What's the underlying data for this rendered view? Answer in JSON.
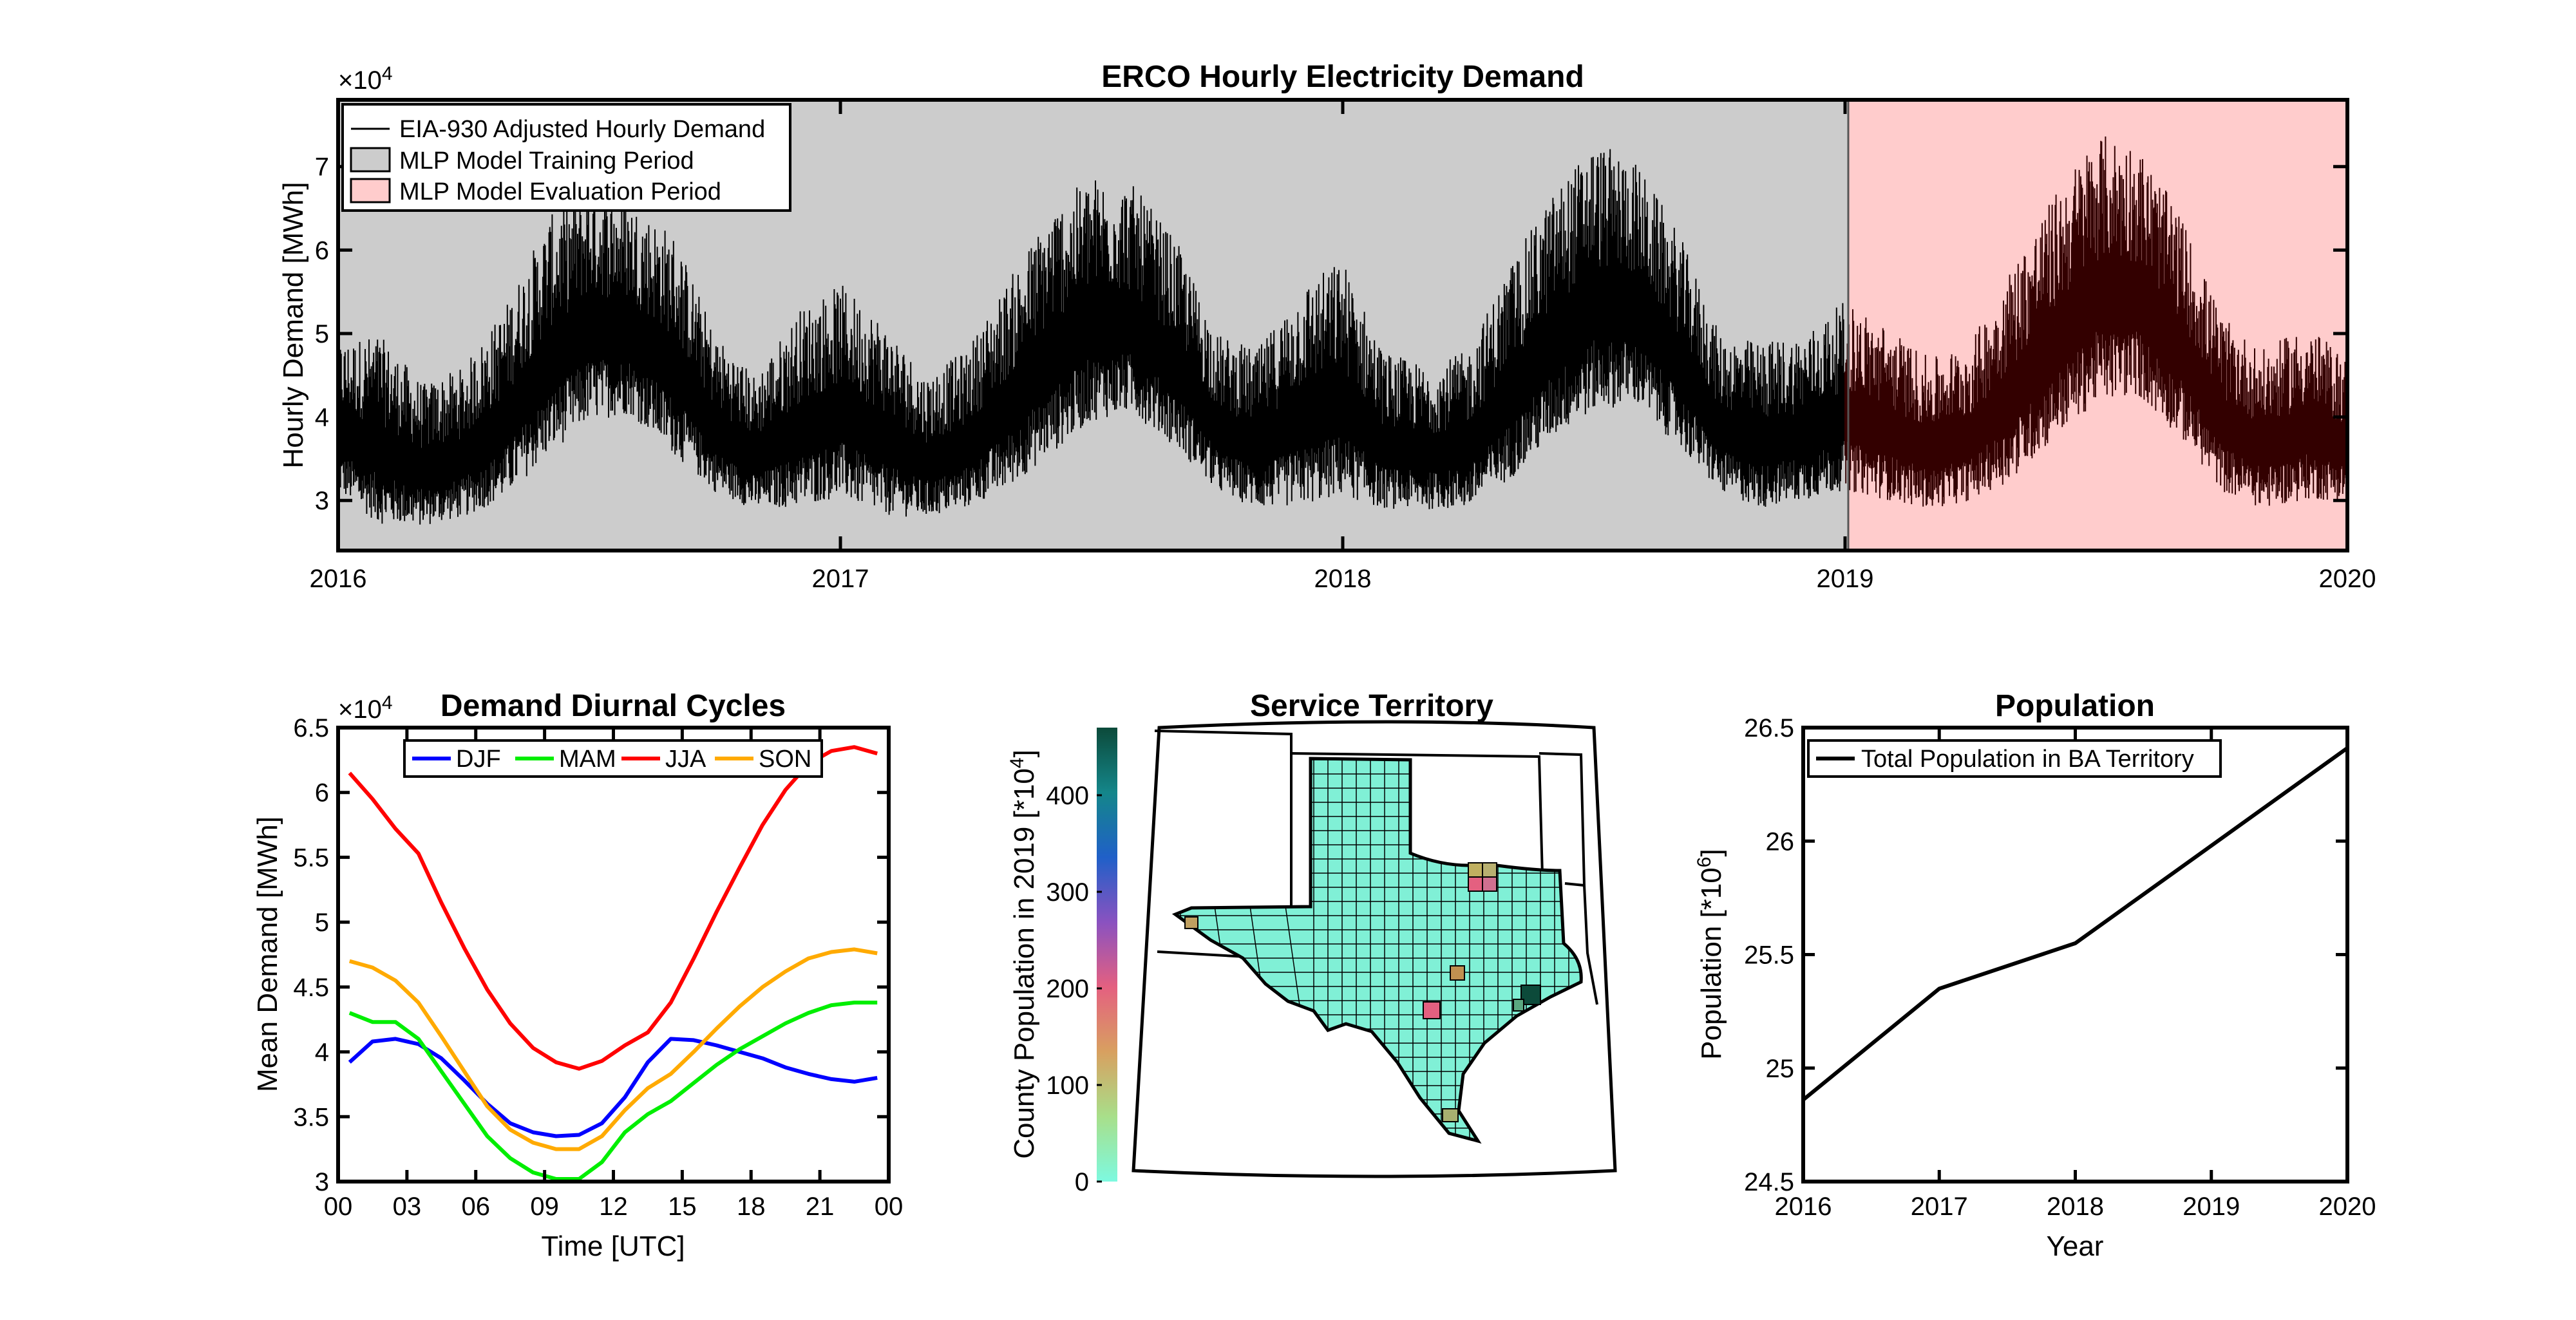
{
  "colors": {
    "training_shade": "#cccccc",
    "evaluation_shade": "#ffcccc",
    "demand_line": "#000000",
    "evaluation_line": "#330000",
    "DJF": "#0000ff",
    "MAM": "#00ee00",
    "JJA": "#ff0000",
    "SON": "#ffaa00",
    "population_line": "#000000",
    "county_fill": "#80f0d6"
  },
  "chart_data": [
    {
      "type": "line",
      "title": "ERCO Hourly Electricity Demand",
      "ylabel": "Hourly Demand [MWh]",
      "y_exponent": "×10",
      "y_exponent_power": "4",
      "x_tick_labels": [
        "2016",
        "2017",
        "2018",
        "2019",
        "2020"
      ],
      "xlim": [
        2016,
        2020
      ],
      "ylim": [
        2.4,
        7.8
      ],
      "y_ticks": [
        3,
        4,
        5,
        6,
        7
      ],
      "legend_position": "top-left",
      "legend": [
        "EIA-930 Adjusted Hourly Demand",
        "MLP Model Training Period",
        "MLP Model Evaluation Period"
      ],
      "training_period": [
        2016,
        2019
      ],
      "evaluation_period": [
        2019,
        2020
      ],
      "series": [
        {
          "name": "EIA-930 Adjusted Hourly Demand",
          "x": [
            2016.0,
            2016.08,
            2016.17,
            2016.25,
            2016.33,
            2016.42,
            2016.5,
            2016.58,
            2016.67,
            2016.75,
            2016.83,
            2016.92,
            2017.0,
            2017.08,
            2017.17,
            2017.25,
            2017.33,
            2017.42,
            2017.5,
            2017.58,
            2017.67,
            2017.75,
            2017.83,
            2017.92,
            2018.0,
            2018.08,
            2018.17,
            2018.25,
            2018.33,
            2018.42,
            2018.5,
            2018.58,
            2018.67,
            2018.75,
            2018.83,
            2018.92,
            2019.0,
            2019.08,
            2019.17,
            2019.25,
            2019.33,
            2019.42,
            2019.5,
            2019.58,
            2019.67,
            2019.75,
            2019.83,
            2019.92,
            2020.0
          ],
          "low": [
            3.0,
            2.6,
            2.6,
            2.7,
            2.9,
            3.4,
            3.8,
            3.9,
            3.4,
            3.0,
            2.8,
            2.8,
            2.9,
            2.7,
            2.7,
            2.8,
            3.0,
            3.4,
            3.8,
            3.9,
            3.5,
            3.0,
            2.8,
            2.8,
            2.9,
            2.8,
            2.8,
            2.8,
            3.1,
            3.6,
            3.9,
            4.0,
            3.5,
            3.0,
            2.8,
            2.9,
            3.0,
            2.9,
            2.8,
            2.9,
            3.1,
            3.6,
            4.0,
            4.1,
            3.6,
            3.0,
            2.8,
            2.9,
            2.9
          ],
          "high": [
            4.9,
            5.0,
            4.4,
            4.6,
            5.3,
            6.4,
            6.8,
            6.6,
            6.2,
            5.0,
            4.5,
            5.3,
            5.6,
            5.2,
            4.5,
            4.8,
            5.6,
            6.5,
            6.9,
            6.8,
            6.1,
            5.0,
            4.8,
            5.6,
            5.9,
            4.8,
            4.6,
            4.8,
            5.8,
            6.7,
            7.3,
            7.1,
            6.2,
            5.0,
            4.9,
            5.0,
            5.4,
            5.1,
            4.7,
            4.9,
            5.8,
            6.7,
            7.4,
            7.3,
            6.4,
            5.2,
            4.8,
            5.1,
            4.7
          ]
        }
      ]
    },
    {
      "type": "line",
      "title": "Demand Diurnal Cycles",
      "xlabel": "Time [UTC]",
      "ylabel": "Mean Demand [MWh]",
      "y_exponent": "×10",
      "y_exponent_power": "4",
      "x_tick_labels": [
        "00",
        "03",
        "06",
        "09",
        "12",
        "15",
        "18",
        "21",
        "00"
      ],
      "xlim": [
        0,
        24
      ],
      "ylim": [
        3.0,
        6.5
      ],
      "y_ticks": [
        3,
        3.5,
        4,
        4.5,
        5,
        5.5,
        6,
        6.5
      ],
      "y_tick_labels": [
        "3",
        "3.5",
        "4",
        "4.5",
        "5",
        "5.5",
        "6",
        "6.5"
      ],
      "legend_position": "top",
      "x": [
        0.5,
        1.5,
        2.5,
        3.5,
        4.5,
        5.5,
        6.5,
        7.5,
        8.5,
        9.5,
        10.5,
        11.5,
        12.5,
        13.5,
        14.5,
        15.5,
        16.5,
        17.5,
        18.5,
        19.5,
        20.5,
        21.5,
        22.5,
        23.5
      ],
      "series": [
        {
          "name": "DJF",
          "values": [
            3.92,
            4.08,
            4.1,
            4.06,
            3.95,
            3.78,
            3.6,
            3.45,
            3.38,
            3.35,
            3.36,
            3.45,
            3.65,
            3.92,
            4.1,
            4.09,
            4.05,
            4.0,
            3.95,
            3.88,
            3.83,
            3.79,
            3.77,
            3.8
          ]
        },
        {
          "name": "MAM",
          "values": [
            4.3,
            4.23,
            4.23,
            4.1,
            3.85,
            3.6,
            3.35,
            3.18,
            3.07,
            3.02,
            3.02,
            3.15,
            3.38,
            3.52,
            3.62,
            3.76,
            3.9,
            4.02,
            4.12,
            4.22,
            4.3,
            4.36,
            4.38,
            4.38
          ]
        },
        {
          "name": "JJA",
          "values": [
            6.15,
            5.95,
            5.72,
            5.53,
            5.15,
            4.8,
            4.48,
            4.22,
            4.03,
            3.92,
            3.87,
            3.93,
            4.05,
            4.15,
            4.38,
            4.72,
            5.08,
            5.42,
            5.75,
            6.02,
            6.22,
            6.32,
            6.35,
            6.3
          ]
        },
        {
          "name": "SON",
          "values": [
            4.7,
            4.65,
            4.55,
            4.38,
            4.12,
            3.85,
            3.58,
            3.4,
            3.3,
            3.25,
            3.25,
            3.35,
            3.55,
            3.72,
            3.83,
            4.0,
            4.18,
            4.35,
            4.5,
            4.62,
            4.72,
            4.77,
            4.79,
            4.76
          ]
        }
      ]
    },
    {
      "type": "heatmap",
      "title": "Service Territory",
      "colorbar_label": "County Population in 2019 [*10",
      "colorbar_label_power": "4",
      "colorbar_label_suffix": "]",
      "colorbar_range": [
        0,
        470
      ],
      "colorbar_ticks": [
        0,
        100,
        200,
        300,
        400
      ],
      "colorbar_colors": [
        "#7df9e0",
        "#a8df8a",
        "#d8a060",
        "#e46080",
        "#8a52c0",
        "#2060c8",
        "#14868a",
        "#0c4a3a"
      ]
    },
    {
      "type": "line",
      "title": "Population",
      "xlabel": "Year",
      "ylabel": "Population [*10",
      "ylabel_power": "6",
      "ylabel_suffix": "]",
      "categories": [
        "2016",
        "2017",
        "2018",
        "2019",
        "2020"
      ],
      "x": [
        2016,
        2017,
        2018,
        2019,
        2020
      ],
      "ylim": [
        24.5,
        26.5
      ],
      "y_ticks": [
        24.5,
        25,
        25.5,
        26,
        26.5
      ],
      "y_tick_labels": [
        "24.5",
        "25",
        "25.5",
        "26",
        "26.5"
      ],
      "legend_position": "top-left",
      "series": [
        {
          "name": "Total Population in BA Territory",
          "values": [
            24.86,
            25.35,
            25.55,
            25.98,
            26.41
          ]
        }
      ]
    }
  ]
}
